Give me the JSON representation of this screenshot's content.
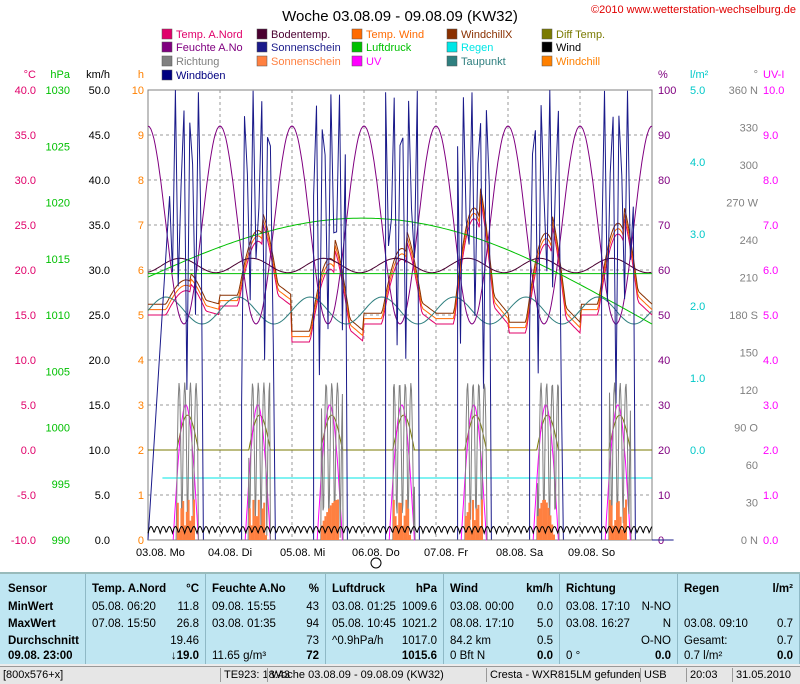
{
  "title": "Woche 03.08.09 - 09.08.09 (KW32)",
  "copyright": "©2010 www.wetterstation-wechselburg.de",
  "legend": [
    {
      "label": "Temp. A.Nord",
      "color": "#e0006a"
    },
    {
      "label": "Bodentemp.",
      "color": "#4a0030"
    },
    {
      "label": "Temp. Wind",
      "color": "#ff6a00"
    },
    {
      "label": "WindchillX",
      "color": "#8a3000"
    },
    {
      "label": "Diff Temp.",
      "color": "#7a7a00"
    },
    {
      "label": "Feuchte A.No",
      "color": "#800080"
    },
    {
      "label": "Sonnenschein",
      "color": "#1a1a8a"
    },
    {
      "label": "Luftdruck",
      "color": "#00c000"
    },
    {
      "label": "Regen",
      "color": "#00e6e6"
    },
    {
      "label": "Wind",
      "color": "#000000"
    },
    {
      "label": "Richtung",
      "color": "#808080"
    },
    {
      "label": "Sonnenschein",
      "color": "#ff8040"
    },
    {
      "label": "UV",
      "color": "#ff00ff"
    },
    {
      "label": "Taupunkt",
      "color": "#2f7f7f"
    },
    {
      "label": "Windchill",
      "color": "#ff8000"
    },
    {
      "label": "Windböen",
      "color": "#000080"
    }
  ],
  "axes": {
    "c": {
      "unit": "°C",
      "ticks": [
        "40.0",
        "35.0",
        "30.0",
        "25.0",
        "20.0",
        "15.0",
        "10.0",
        "5.0",
        "0.0",
        "-5.0",
        "-10.0"
      ],
      "color": "#e0006a"
    },
    "hpa": {
      "unit": "hPa",
      "ticks": [
        "1030",
        "1025",
        "1020",
        "1015",
        "1010",
        "1005",
        "1000",
        "995",
        "990"
      ],
      "color": "#00c000"
    },
    "kmh": {
      "unit": "km/h",
      "ticks": [
        "50.0",
        "45.0",
        "40.0",
        "35.0",
        "30.0",
        "25.0",
        "20.0",
        "15.0",
        "10.0",
        "5.0",
        "0.0"
      ],
      "color": "#000000"
    },
    "h": {
      "unit": "h",
      "ticks": [
        "10",
        "9",
        "8",
        "7",
        "6",
        "5",
        "4",
        "3",
        "2",
        "1",
        "0"
      ],
      "color": "#ff8000"
    },
    "pct": {
      "unit": "%",
      "ticks": [
        "100",
        "90",
        "80",
        "70",
        "60",
        "50",
        "40",
        "30",
        "20",
        "10",
        "0"
      ],
      "color": "#800080"
    },
    "lm2": {
      "unit": "l/m²",
      "ticks": [
        "5.0",
        "4.0",
        "3.0",
        "2.0",
        "1.0",
        "0.0"
      ],
      "color": "#00c8c8"
    },
    "deg": {
      "unit": "°",
      "ticks": [
        "360 N",
        "330",
        "300",
        "270 W",
        "240",
        "210",
        "180 S",
        "150",
        "120",
        "90 O",
        "60",
        "30",
        "0 N"
      ],
      "color": "#808080"
    },
    "uv": {
      "unit": "UV-I",
      "ticks": [
        "10.0",
        "9.0",
        "8.0",
        "7.0",
        "6.0",
        "5.0",
        "4.0",
        "3.0",
        "2.0",
        "1.0",
        "0.0"
      ],
      "color": "#ff00ff"
    }
  },
  "days": [
    {
      "date": "03.08.",
      "day": "Mo"
    },
    {
      "date": "04.08.",
      "day": "Di"
    },
    {
      "date": "05.08.",
      "day": "Mi"
    },
    {
      "date": "06.08.",
      "day": "Do"
    },
    {
      "date": "07.08.",
      "day": "Fr"
    },
    {
      "date": "08.08.",
      "day": "Sa"
    },
    {
      "date": "09.08.",
      "day": "So"
    }
  ],
  "colors": {
    "plot_bg": "#ffffff",
    "panel_bg": "#bfe6f2",
    "grid": "#999999",
    "frame": "#808080"
  },
  "table": {
    "row_labels": [
      "Sensor",
      "MinWert",
      "MaxWert",
      "Durchschnitt",
      "09.08. 23:00"
    ],
    "columns": [
      {
        "header": "Temp. A.Nord",
        "unit": "°C",
        "rows": [
          [
            "05.08. 06:20",
            "11.8"
          ],
          [
            "07.08. 15:50",
            "26.8"
          ],
          [
            "",
            "19.46"
          ],
          [
            "",
            "↓19.0"
          ]
        ]
      },
      {
        "header": "Feuchte A.No",
        "unit": "%",
        "rows": [
          [
            "09.08. 15:55",
            "43"
          ],
          [
            "03.08. 01:35",
            "94"
          ],
          [
            "",
            "73"
          ],
          [
            "11.65 g/m³",
            "72"
          ]
        ]
      },
      {
        "header": "Luftdruck",
        "unit": "hPa",
        "rows": [
          [
            "03.08. 01:25",
            "1009.6"
          ],
          [
            "05.08. 10:45",
            "1021.2"
          ],
          [
            "^0.9hPa/h",
            "1017.0"
          ],
          [
            "",
            "1015.6"
          ]
        ]
      },
      {
        "header": "Wind",
        "unit": "km/h",
        "rows": [
          [
            "03.08. 00:00",
            "0.0"
          ],
          [
            "08.08. 17:10",
            "5.0"
          ],
          [
            "84.2 km",
            "0.5"
          ],
          [
            "0 Bft N",
            "0.0"
          ]
        ]
      },
      {
        "header": "Richtung",
        "unit": "",
        "rows": [
          [
            "03.08. 17:10",
            "N-NO"
          ],
          [
            "03.08. 16:27",
            "N"
          ],
          [
            "",
            "O-NO"
          ],
          [
            "0 °",
            "0.0"
          ]
        ]
      },
      {
        "header": "Regen",
        "unit": "l/m²",
        "rows": [
          [
            "",
            ""
          ],
          [
            "03.08. 09:10",
            "0.7"
          ],
          [
            "Gesamt:",
            "0.7"
          ],
          [
            "0.7 l/m²",
            "0.0"
          ]
        ]
      }
    ]
  },
  "status": [
    "[800x576+x]",
    "TE923: 18:43",
    "Woche 03.08.09 - 09.08.09 (KW32)",
    "Cresta - WXR815LM gefunden",
    "USB",
    "20:03",
    "31.05.2010"
  ]
}
